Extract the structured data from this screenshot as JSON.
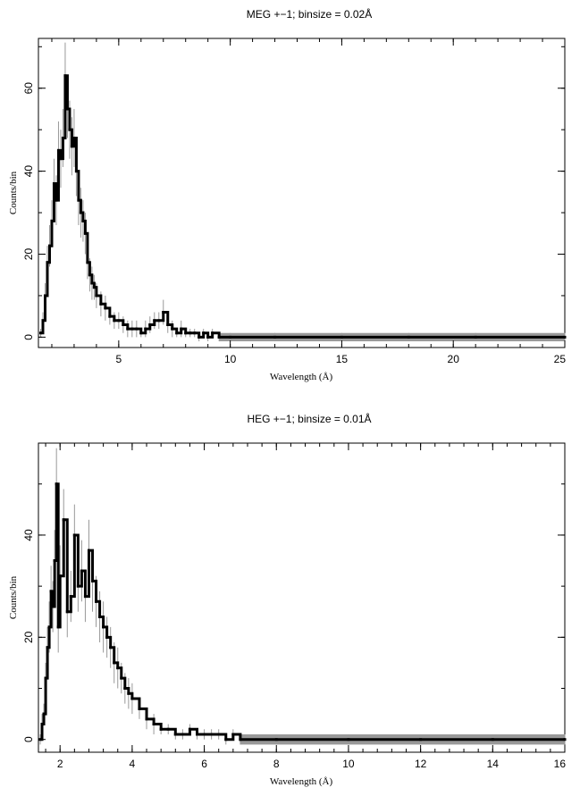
{
  "chart_data": [
    {
      "type": "line",
      "title": "MEG +−1; binsize = 0.02Å",
      "xlabel": "Wavelength (Å)",
      "ylabel": "Counts/bin",
      "xlim": [
        1.4,
        25
      ],
      "ylim": [
        -2.5,
        72
      ],
      "xticks": [
        5,
        10,
        15,
        20,
        25
      ],
      "xtick_labels": [
        "5",
        "10",
        "15",
        "20",
        "25"
      ],
      "yticks": [
        0,
        20,
        40,
        60
      ],
      "ytick_labels": [
        "0",
        "20",
        "40",
        "60"
      ],
      "grid": false,
      "series": [
        {
          "color": "#000000",
          "errorbar_color": "#999999",
          "x": [
            1.5,
            1.6,
            1.7,
            1.8,
            1.9,
            2.0,
            2.1,
            2.2,
            2.3,
            2.4,
            2.5,
            2.6,
            2.7,
            2.8,
            2.9,
            3.0,
            3.1,
            3.2,
            3.3,
            3.4,
            3.5,
            3.6,
            3.7,
            3.8,
            3.9,
            4.0,
            4.2,
            4.4,
            4.6,
            4.8,
            5.0,
            5.2,
            5.4,
            5.6,
            5.8,
            6.0,
            6.2,
            6.4,
            6.6,
            6.8,
            7.0,
            7.2,
            7.4,
            7.6,
            7.8,
            8.0,
            8.2,
            8.4,
            8.6,
            8.8,
            9.0,
            9.2,
            9.5,
            10.0,
            12.0,
            15.0,
            18.0,
            21.0,
            25.0
          ],
          "y": [
            1,
            4,
            10,
            18,
            22,
            28,
            37,
            33,
            45,
            43,
            48,
            63,
            55,
            50,
            46,
            48,
            40,
            33,
            30,
            28,
            25,
            18,
            15,
            13,
            12,
            10,
            8,
            7,
            5,
            4,
            4,
            3,
            2,
            2,
            2,
            1,
            2,
            3,
            4,
            4,
            6,
            3,
            2,
            1,
            2,
            1,
            1,
            1,
            0,
            1,
            0,
            1,
            0,
            0,
            0,
            0,
            0,
            0,
            0
          ],
          "error": [
            1,
            2,
            3,
            4,
            5,
            5,
            6,
            6,
            7,
            7,
            7,
            8,
            7,
            7,
            7,
            7,
            6,
            6,
            6,
            5,
            5,
            4,
            4,
            4,
            3,
            3,
            3,
            3,
            2,
            2,
            2,
            2,
            2,
            2,
            2,
            1,
            2,
            2,
            2,
            2,
            3,
            2,
            2,
            1,
            2,
            1,
            1,
            1,
            1,
            1,
            1,
            1,
            1,
            1,
            1,
            1,
            1,
            1,
            1
          ]
        }
      ]
    },
    {
      "type": "line",
      "title": "HEG +−1; binsize = 0.01Å",
      "xlabel": "Wavelength (Å)",
      "ylabel": "Counts/bin",
      "xlim": [
        1.4,
        16
      ],
      "ylim": [
        -2.5,
        58
      ],
      "xticks": [
        2,
        4,
        6,
        8,
        10,
        12,
        14,
        16
      ],
      "xtick_labels": [
        "2",
        "4",
        "6",
        "8",
        "10",
        "12",
        "14",
        "16"
      ],
      "yticks": [
        0,
        20,
        40
      ],
      "ytick_labels": [
        "0",
        "20",
        "40"
      ],
      "grid": false,
      "series": [
        {
          "color": "#000000",
          "errorbar_color": "#999999",
          "x": [
            1.45,
            1.5,
            1.55,
            1.6,
            1.65,
            1.7,
            1.75,
            1.8,
            1.85,
            1.9,
            1.95,
            2.0,
            2.1,
            2.2,
            2.3,
            2.4,
            2.5,
            2.6,
            2.7,
            2.8,
            2.9,
            3.0,
            3.1,
            3.2,
            3.3,
            3.4,
            3.5,
            3.6,
            3.7,
            3.8,
            3.9,
            4.0,
            4.2,
            4.4,
            4.6,
            4.8,
            5.0,
            5.2,
            5.4,
            5.6,
            5.8,
            6.0,
            6.2,
            6.4,
            6.6,
            6.8,
            7.0,
            8.0,
            10.0,
            12.0,
            14.0,
            16.0
          ],
          "y": [
            0,
            3,
            5,
            12,
            18,
            22,
            29,
            26,
            35,
            50,
            22,
            32,
            43,
            25,
            28,
            40,
            30,
            33,
            28,
            37,
            31,
            27,
            24,
            22,
            20,
            18,
            15,
            14,
            12,
            10,
            9,
            8,
            6,
            4,
            3,
            2,
            2,
            1,
            1,
            2,
            1,
            1,
            1,
            1,
            0,
            1,
            0,
            0,
            0,
            0,
            0,
            0
          ],
          "error": [
            1,
            2,
            2,
            3,
            4,
            5,
            5,
            5,
            6,
            7,
            5,
            6,
            6,
            5,
            5,
            6,
            5,
            6,
            5,
            6,
            6,
            5,
            5,
            5,
            4,
            4,
            4,
            4,
            3,
            3,
            3,
            3,
            2,
            2,
            2,
            1,
            1,
            1,
            1,
            1,
            1,
            1,
            1,
            1,
            1,
            1,
            1,
            1,
            1,
            1,
            1,
            1
          ]
        }
      ]
    }
  ]
}
